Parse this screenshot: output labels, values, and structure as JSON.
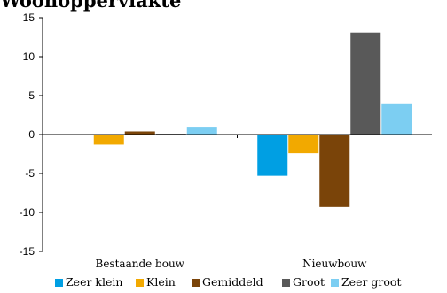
{
  "chart_data": {
    "type": "bar",
    "title": "Woonoppervlakte",
    "categories": [
      "Bestaande bouw",
      "Nieuwbouw"
    ],
    "ylim": [
      -15,
      15
    ],
    "yticks": [
      15,
      10,
      5,
      0,
      -5,
      -10,
      -15
    ],
    "grid": false,
    "legend_position": "bottom",
    "series": [
      {
        "name": "Zeer klein",
        "color": "#009FE3",
        "values": [
          0.0,
          -5.3
        ]
      },
      {
        "name": "Klein",
        "color": "#F2A900",
        "values": [
          -1.3,
          -2.4
        ]
      },
      {
        "name": "Gemiddeld",
        "color": "#7A4409",
        "values": [
          0.4,
          -9.3
        ]
      },
      {
        "name": "Groot",
        "color": "#595959",
        "values": [
          0.1,
          13.1
        ]
      },
      {
        "name": "Zeer groot",
        "color": "#7CCEF2",
        "values": [
          0.9,
          4.0
        ]
      }
    ]
  }
}
